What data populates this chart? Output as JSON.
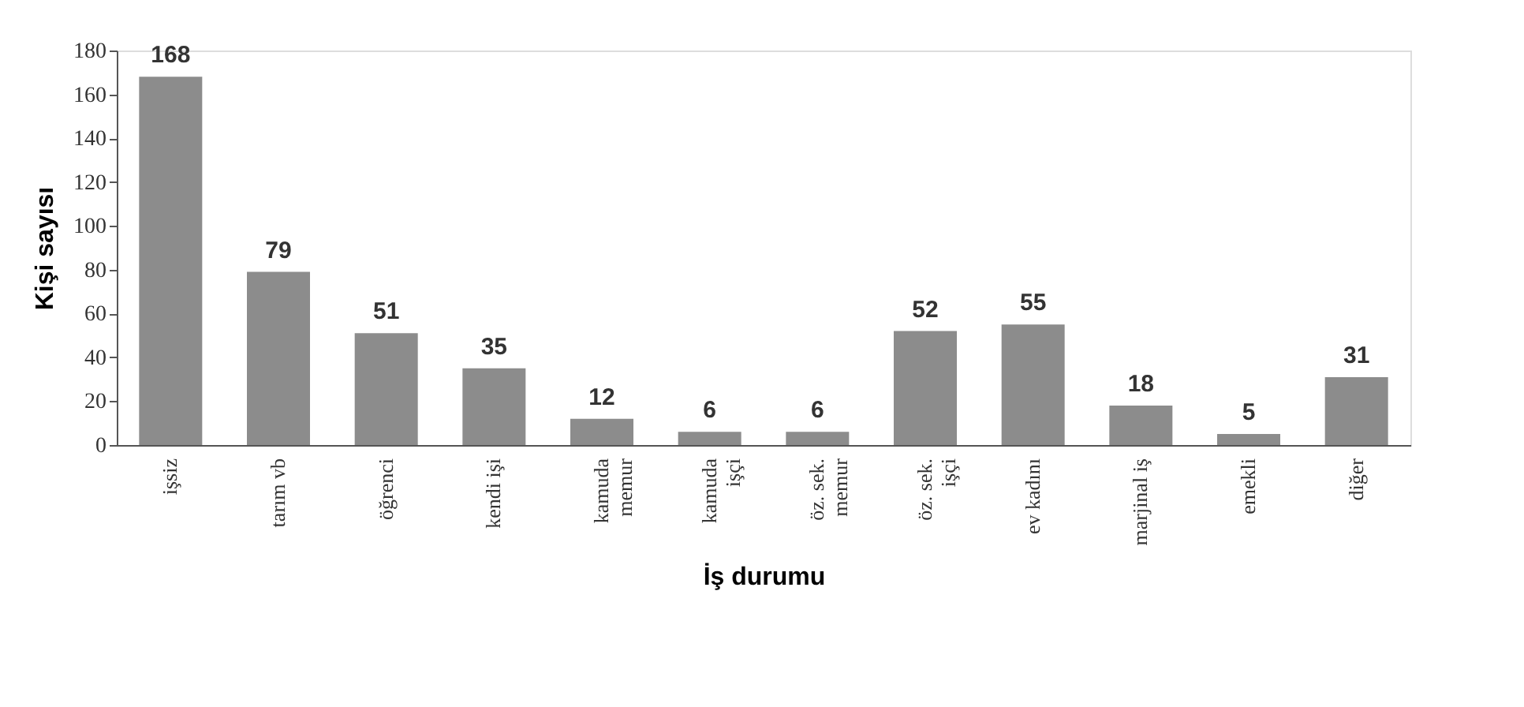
{
  "chart_data": {
    "type": "bar",
    "xlabel": "İş durumu",
    "ylabel": "Kişi sayısı",
    "categories": [
      "işsiz",
      "tarım vb",
      "öğrenci",
      "kendi işi",
      "kamuda\nmemur",
      "kamuda\nişçi",
      "öz. sek.\nmemur",
      "öz. sek.\nişçi",
      "ev kadını",
      "marjinal iş",
      "emekli",
      "diğer"
    ],
    "values": [
      168,
      79,
      51,
      35,
      12,
      6,
      6,
      52,
      55,
      18,
      5,
      31
    ],
    "color": "#8c8c8c",
    "ylim": [
      0,
      180
    ],
    "yticks": [
      0,
      20,
      40,
      60,
      80,
      100,
      120,
      140,
      160,
      180
    ],
    "grid": false,
    "data_labels": true
  }
}
